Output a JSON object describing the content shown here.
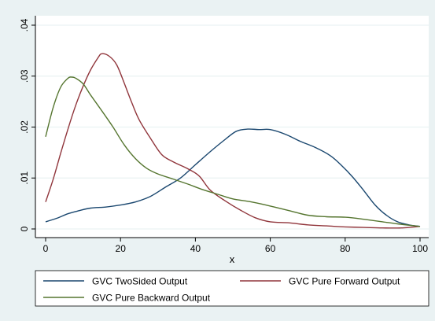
{
  "chart_data": {
    "type": "line",
    "title": "",
    "xlabel": "x",
    "ylabel": "",
    "xlim": [
      0,
      100
    ],
    "ylim": [
      0,
      0.04
    ],
    "xticks": [
      0,
      20,
      40,
      60,
      80,
      100
    ],
    "xtick_labels": [
      "0",
      "20",
      "40",
      "60",
      "80",
      "100"
    ],
    "yticks": [
      0,
      0.01,
      0.02,
      0.03,
      0.04
    ],
    "ytick_labels": [
      "0",
      ".01",
      ".02",
      ".03",
      ".04"
    ],
    "grid": "horizontal",
    "legend_position": "bottom",
    "series": [
      {
        "name": "GVC TwoSided Output",
        "color": "#1a476f",
        "x": [
          0,
          3,
          6,
          9,
          12,
          16,
          20,
          24,
          28,
          32,
          36,
          40,
          44,
          48,
          51,
          54,
          57,
          60,
          64,
          68,
          72,
          76,
          79,
          82,
          85,
          88,
          91,
          94,
          97,
          100
        ],
        "y": [
          0.0014,
          0.0021,
          0.003,
          0.0036,
          0.0041,
          0.0043,
          0.0047,
          0.0053,
          0.0064,
          0.0082,
          0.01,
          0.0126,
          0.0152,
          0.0176,
          0.0192,
          0.0196,
          0.0195,
          0.0195,
          0.0186,
          0.0172,
          0.016,
          0.0144,
          0.0125,
          0.0102,
          0.0075,
          0.0047,
          0.0027,
          0.0014,
          0.0008,
          0.0005
        ]
      },
      {
        "name": "GVC Pure Forward Output",
        "color": "#90353b",
        "x": [
          0,
          2,
          4,
          6,
          8,
          10,
          12,
          14,
          15,
          17,
          19,
          21,
          23,
          25,
          28,
          31,
          34,
          38,
          41,
          44,
          48,
          52,
          56,
          60,
          65,
          70,
          75,
          80,
          85,
          90,
          95,
          100
        ],
        "y": [
          0.0053,
          0.0097,
          0.0148,
          0.0197,
          0.0242,
          0.028,
          0.0312,
          0.0336,
          0.0344,
          0.0339,
          0.0322,
          0.0286,
          0.0248,
          0.0214,
          0.0178,
          0.0146,
          0.0132,
          0.0118,
          0.0104,
          0.0076,
          0.0055,
          0.0037,
          0.0022,
          0.0014,
          0.0012,
          0.0008,
          0.0006,
          0.0004,
          0.0003,
          0.0002,
          0.0002,
          0.0005
        ]
      },
      {
        "name": "GVC Pure Backward Output",
        "color": "#55752f",
        "x": [
          0,
          2,
          4,
          6,
          7,
          8,
          10,
          12,
          15,
          18,
          21,
          24,
          27,
          30,
          34,
          38,
          42,
          46,
          50,
          55,
          60,
          65,
          70,
          75,
          80,
          85,
          90,
          95,
          100
        ],
        "y": [
          0.0181,
          0.0238,
          0.0278,
          0.0296,
          0.0298,
          0.0296,
          0.0285,
          0.0263,
          0.0232,
          0.02,
          0.0165,
          0.0138,
          0.0119,
          0.0108,
          0.0098,
          0.0088,
          0.0077,
          0.0068,
          0.0059,
          0.0053,
          0.0045,
          0.0036,
          0.0027,
          0.0024,
          0.0023,
          0.0019,
          0.0014,
          0.0009,
          0.0005
        ]
      }
    ]
  }
}
